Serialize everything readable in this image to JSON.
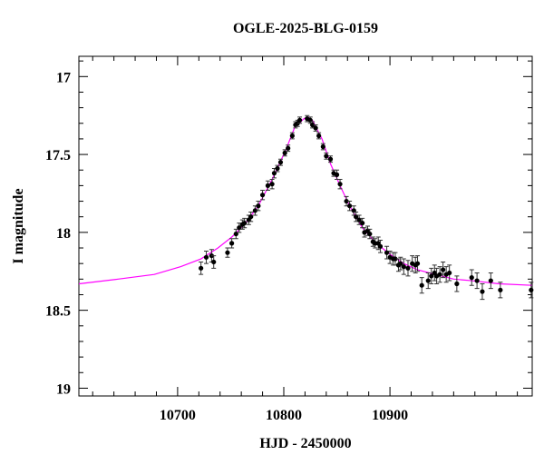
{
  "chart_data": {
    "type": "scatter",
    "title": "OGLE-2025-BLG-0159",
    "x_label": "HJD - 2450000",
    "y_label": "I magnitude",
    "xlim": [
      10607,
      11034
    ],
    "ylim": [
      16.87,
      19.05
    ],
    "y_inverted": true,
    "xticks": [
      10700,
      10800,
      10900
    ],
    "yticks": [
      17,
      17.5,
      18,
      18.5,
      19
    ],
    "xminorticks": [
      10620,
      10640,
      10660,
      10680,
      10720,
      10740,
      10760,
      10780,
      10820,
      10840,
      10860,
      10880,
      10920,
      10940,
      10960,
      10980,
      11000,
      11020
    ],
    "yminorticks": [
      16.9,
      17.1,
      17.2,
      17.3,
      17.4,
      17.6,
      17.7,
      17.8,
      17.9,
      18.1,
      18.2,
      18.3,
      18.4,
      18.6,
      18.7,
      18.8,
      18.9
    ],
    "points": {
      "color": "#000000",
      "x": [
        10722,
        10727,
        10732,
        10734,
        10747,
        10751,
        10755,
        10758,
        10761,
        10763,
        10767,
        10769,
        10773,
        10776,
        10780,
        10785,
        10789,
        10791,
        10794,
        10797,
        10801,
        10804,
        10808,
        10811,
        10813,
        10815,
        10822,
        10825,
        10827,
        10830,
        10833,
        10837,
        10840,
        10844,
        10847,
        10850,
        10853,
        10859,
        10862,
        10866,
        10868,
        10871,
        10874,
        10876,
        10879,
        10881,
        10884,
        10886,
        10889,
        10891,
        10897,
        10900,
        10903,
        10905,
        10908,
        10910,
        10913,
        10917,
        10921,
        10924,
        10926,
        10930,
        10936,
        10939,
        10942,
        10944,
        10947,
        10950,
        10953,
        10956,
        10963,
        10977,
        10982,
        10987,
        10995,
        11004,
        11033
      ],
      "values": [
        18.23,
        18.16,
        18.15,
        18.19,
        18.13,
        18.07,
        18.01,
        17.97,
        17.95,
        17.94,
        17.92,
        17.9,
        17.86,
        17.83,
        17.76,
        17.7,
        17.69,
        17.62,
        17.59,
        17.55,
        17.49,
        17.46,
        17.38,
        17.31,
        17.3,
        17.28,
        17.27,
        17.28,
        17.31,
        17.33,
        17.38,
        17.45,
        17.51,
        17.53,
        17.62,
        17.63,
        17.69,
        17.8,
        17.83,
        17.86,
        17.9,
        17.92,
        17.94,
        18.0,
        17.99,
        18.01,
        18.06,
        18.07,
        18.07,
        18.09,
        18.13,
        18.16,
        18.17,
        18.17,
        18.21,
        18.2,
        18.22,
        18.23,
        18.2,
        18.21,
        18.2,
        18.34,
        18.31,
        18.28,
        18.26,
        18.28,
        18.27,
        18.24,
        18.27,
        18.26,
        18.33,
        18.29,
        18.31,
        18.38,
        18.31,
        18.37,
        18.37
      ],
      "errors": [
        0.04,
        0.04,
        0.04,
        0.04,
        0.03,
        0.03,
        0.03,
        0.03,
        0.03,
        0.03,
        0.03,
        0.03,
        0.03,
        0.03,
        0.03,
        0.03,
        0.03,
        0.03,
        0.02,
        0.02,
        0.02,
        0.02,
        0.02,
        0.02,
        0.02,
        0.02,
        0.02,
        0.02,
        0.02,
        0.02,
        0.02,
        0.02,
        0.02,
        0.02,
        0.02,
        0.03,
        0.03,
        0.03,
        0.03,
        0.03,
        0.03,
        0.03,
        0.03,
        0.03,
        0.03,
        0.03,
        0.03,
        0.03,
        0.04,
        0.04,
        0.04,
        0.04,
        0.04,
        0.04,
        0.04,
        0.04,
        0.05,
        0.05,
        0.05,
        0.05,
        0.05,
        0.05,
        0.05,
        0.05,
        0.05,
        0.05,
        0.05,
        0.05,
        0.05,
        0.05,
        0.05,
        0.05,
        0.05,
        0.05,
        0.05,
        0.05,
        0.05
      ]
    },
    "model": {
      "color": "#ff00ff",
      "x": [
        10607,
        10644,
        10678,
        10703,
        10722,
        10738,
        10751,
        10763,
        10776,
        10789,
        10802,
        10810,
        10819,
        10823,
        10827,
        10836,
        10844,
        10853,
        10862,
        10874,
        10887,
        10900,
        10913,
        10926,
        10943,
        10960,
        10977,
        11003,
        11034
      ],
      "values": [
        18.33,
        18.3,
        18.27,
        18.22,
        18.17,
        18.1,
        18.03,
        17.95,
        17.83,
        17.66,
        17.47,
        17.33,
        17.27,
        17.26,
        17.28,
        17.4,
        17.56,
        17.7,
        17.83,
        17.97,
        18.07,
        18.14,
        18.2,
        18.24,
        18.27,
        18.3,
        18.31,
        18.33,
        18.34
      ]
    }
  }
}
